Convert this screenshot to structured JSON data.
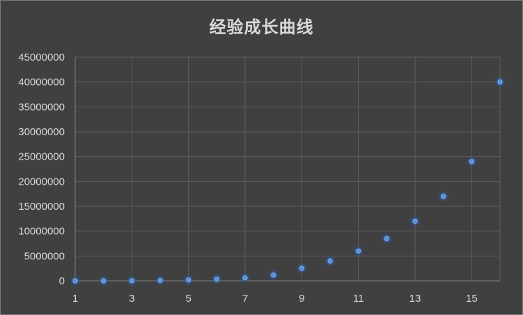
{
  "chart_data": {
    "type": "scatter",
    "title": "经验成长曲线",
    "xlabel": "",
    "ylabel": "",
    "x": [
      1,
      2,
      3,
      4,
      5,
      6,
      7,
      8,
      9,
      10,
      11,
      12,
      13,
      14,
      15,
      16
    ],
    "y": [
      0,
      5000,
      25000,
      80000,
      180000,
      350000,
      600000,
      1150000,
      2500000,
      4000000,
      6000000,
      8500000,
      12000000,
      17000000,
      24000000,
      40000000
    ],
    "xlim": [
      1,
      16
    ],
    "ylim": [
      0,
      45000000
    ],
    "xticks": [
      1,
      3,
      5,
      7,
      9,
      11,
      13,
      15
    ],
    "yticks": [
      0,
      5000000,
      10000000,
      15000000,
      20000000,
      25000000,
      30000000,
      35000000,
      40000000,
      45000000
    ],
    "grid": true,
    "legend": "none",
    "colors": {
      "background": "#404040",
      "marker_fill": "#5b8fd6",
      "marker_glow": "#2f5b9e",
      "text": "#d9d9d9",
      "grid": "#5e5e5e"
    }
  }
}
